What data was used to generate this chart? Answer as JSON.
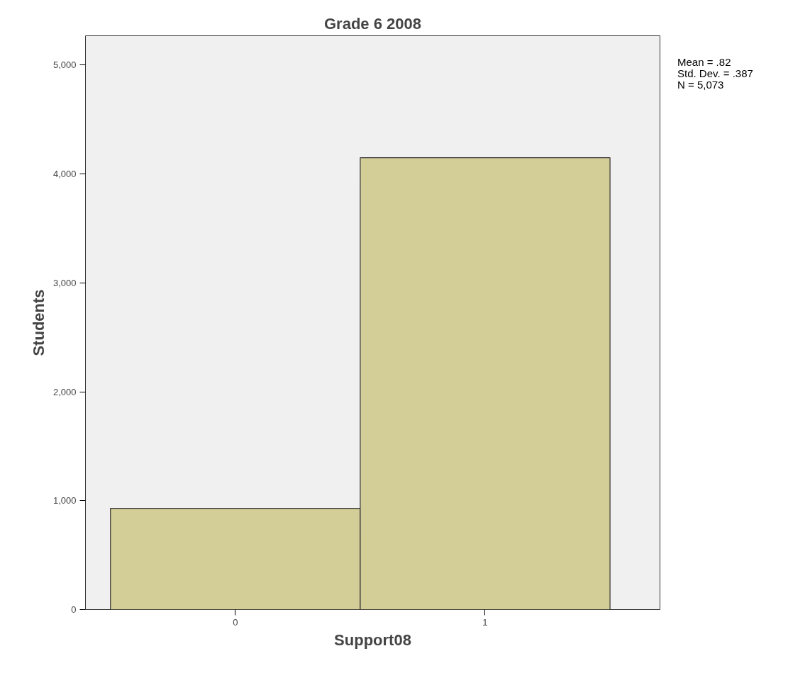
{
  "chart_data": {
    "type": "histogram",
    "title": "Grade 6 2008",
    "xlabel": "Support08",
    "ylabel": "Students",
    "bins": [
      -0.5,
      0.5,
      1.5
    ],
    "values": [
      930,
      4150
    ],
    "color": "#d3ce97",
    "xlim": [
      -0.6,
      1.7
    ],
    "xticks": [
      0,
      1
    ],
    "ylim": [
      0,
      5270
    ],
    "yticks": [
      0,
      {
        "value": 1000,
        "label": "1,000"
      },
      {
        "value": 2000,
        "label": "2,000"
      },
      {
        "value": 3000,
        "label": "3,000"
      },
      {
        "value": 4000,
        "label": "4,000"
      },
      {
        "value": 5000,
        "label": "5,000"
      }
    ],
    "grid": false,
    "annotations": [
      "Mean = .82",
      "Std. Dev. = .387",
      "N = 5,073"
    ]
  }
}
